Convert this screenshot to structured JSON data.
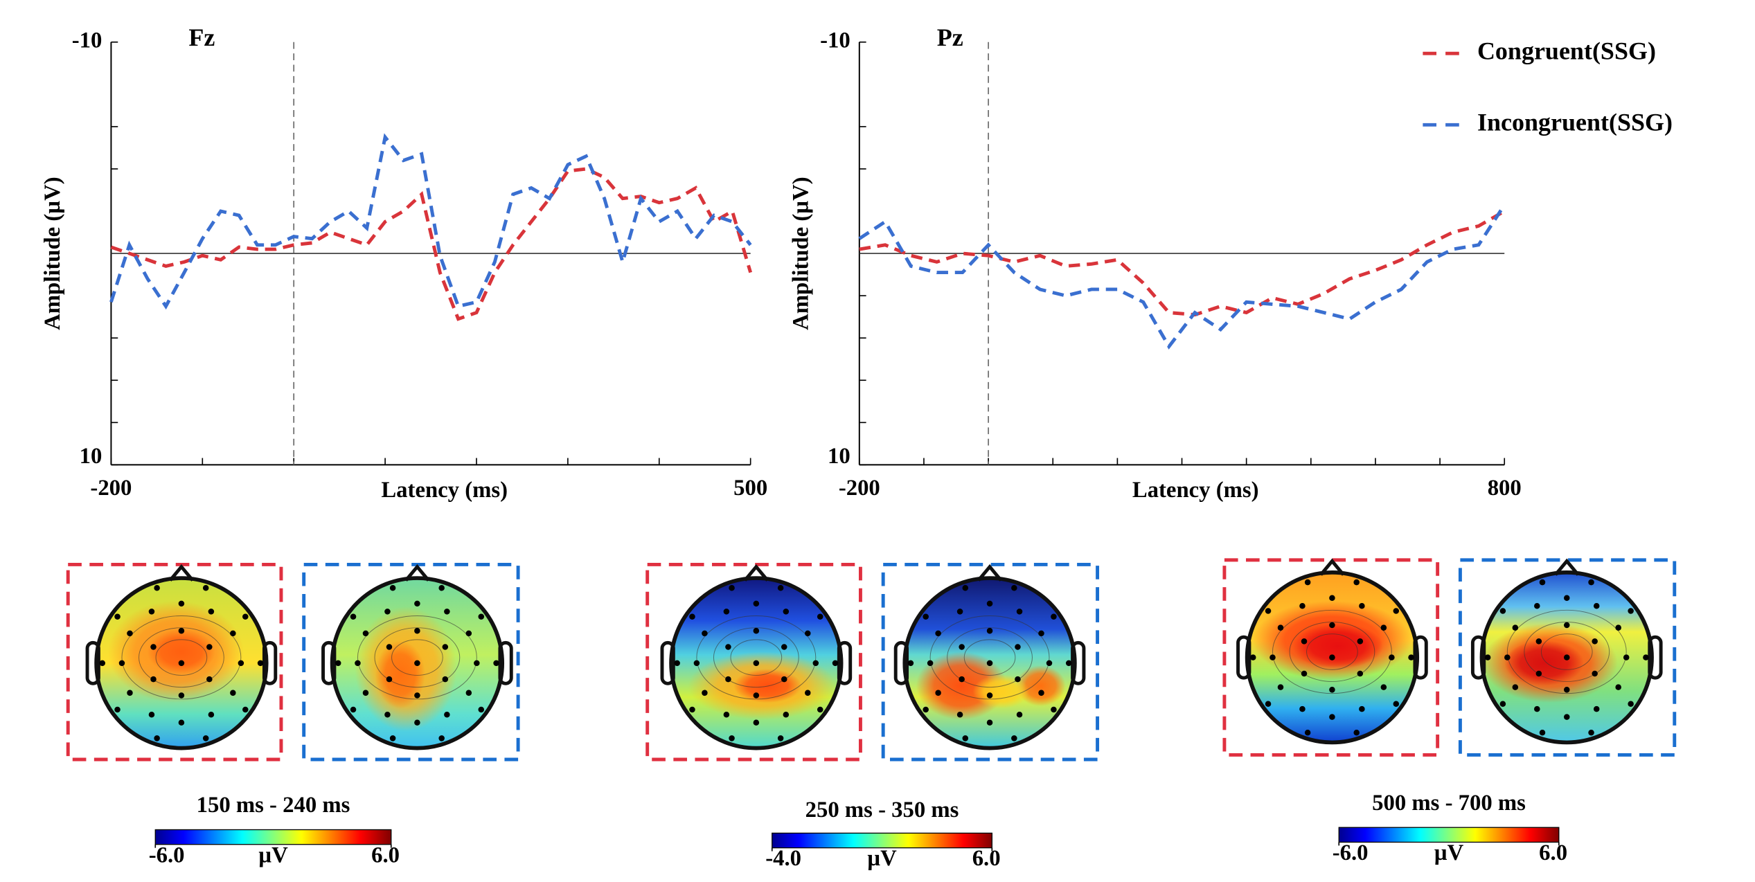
{
  "chart_data": [
    {
      "type": "line",
      "title": "Fz",
      "xlabel": "Latency (ms)",
      "ylabel": "Amplitude (µV)",
      "x": [
        -200,
        -180,
        -160,
        -140,
        -120,
        -100,
        -80,
        -60,
        -40,
        -20,
        0,
        20,
        40,
        60,
        80,
        100,
        120,
        140,
        160,
        180,
        200,
        220,
        240,
        260,
        280,
        300,
        320,
        340,
        360,
        380,
        400,
        420,
        440,
        460,
        480,
        500
      ],
      "series": [
        {
          "color": "#d9343a",
          "values": [
            -0.3,
            0,
            0.3,
            0.6,
            0.4,
            0.1,
            0.3,
            -0.3,
            -0.2,
            -0.2,
            -0.4,
            -0.5,
            -1.0,
            -0.7,
            -0.4,
            -1.5,
            -2.0,
            -2.8,
            0.9,
            3.1,
            2.8,
            0.9,
            -0.4,
            -1.5,
            -2.6,
            -3.9,
            -4.0,
            -3.6,
            -2.6,
            -2.7,
            -2.4,
            -2.6,
            -3.1,
            -1.5,
            -2.0,
            0.9
          ]
        },
        {
          "color": "#3a6fd0",
          "values": [
            2.3,
            -0.4,
            1.2,
            2.5,
            0.9,
            -0.7,
            -2.0,
            -1.8,
            -0.4,
            -0.4,
            -0.8,
            -0.7,
            -1.5,
            -2.0,
            -1.2,
            -5.5,
            -4.4,
            -4.7,
            0.1,
            2.5,
            2.3,
            0.4,
            -2.8,
            -3.1,
            -2.6,
            -4.2,
            -4.6,
            -2.6,
            0.4,
            -2.6,
            -1.5,
            -2.0,
            -0.7,
            -1.8,
            -1.5,
            -0.4
          ]
        }
      ],
      "xlim": [
        -200,
        500
      ],
      "xticks": [
        -200,
        500
      ],
      "xminorticks": [
        -100,
        0,
        100,
        200,
        300,
        400
      ],
      "ylim": [
        -10,
        10
      ],
      "y_reversed": true,
      "yticks": [
        -10,
        10
      ],
      "yminorticks": [
        -6,
        -4,
        4,
        6,
        8
      ],
      "hline": 0,
      "vline": 0,
      "grid": false
    },
    {
      "type": "line",
      "title": "Pz",
      "xlabel": "Latency (ms)",
      "ylabel": "Amplitude (µV)",
      "x": [
        -200,
        -160,
        -120,
        -80,
        -40,
        0,
        40,
        80,
        120,
        160,
        200,
        240,
        280,
        320,
        360,
        400,
        440,
        480,
        520,
        560,
        600,
        640,
        680,
        720,
        760,
        800
      ],
      "series": [
        {
          "name": "Congruent(SSG)",
          "color": "#d9343a",
          "values": [
            -0.2,
            -0.4,
            0.1,
            0.4,
            0,
            0.1,
            0.4,
            0.1,
            0.6,
            0.5,
            0.3,
            1.4,
            2.8,
            2.9,
            2.5,
            2.8,
            2.1,
            2.4,
            1.9,
            1.2,
            0.8,
            0.3,
            -0.4,
            -1.0,
            -1.3,
            -2.0
          ]
        },
        {
          "name": "Incongruent(SSG)",
          "color": "#3a6fd0",
          "values": [
            -0.7,
            -1.5,
            0.6,
            0.9,
            0.9,
            -0.4,
            0.9,
            1.7,
            2.0,
            1.7,
            1.7,
            2.3,
            4.4,
            2.8,
            3.6,
            2.3,
            2.4,
            2.5,
            2.8,
            3.1,
            2.3,
            1.7,
            0.4,
            -0.2,
            -0.4,
            -2.3
          ]
        }
      ],
      "xlim": [
        -200,
        800
      ],
      "xticks": [
        -200,
        800
      ],
      "xminorticks": [
        -100,
        0,
        100,
        200,
        300,
        400,
        500,
        600,
        700
      ],
      "ylim": [
        -10,
        10
      ],
      "y_reversed": true,
      "yticks": [
        -10,
        10
      ],
      "yminorticks": [
        -6,
        -4,
        2,
        4,
        6,
        8
      ],
      "hline": 0,
      "vline": 0,
      "grid": false,
      "legend": "top right"
    }
  ],
  "topomaps": [
    {
      "label": "150 ms - 240 ms",
      "colorbar": {
        "lim": [
          -6,
          6
        ],
        "ticks": [
          {
            "value": -6,
            "label": "-6.0"
          },
          {
            "value": 6,
            "label": "6.0"
          }
        ],
        "unit": "µV"
      }
    },
    {
      "label": "250 ms - 350 ms",
      "colorbar": {
        "lim": [
          -4,
          6
        ],
        "ticks": [
          {
            "value": -4,
            "label": "-4.0"
          },
          {
            "value": 6,
            "label": "6.0"
          }
        ],
        "unit": "µV"
      }
    },
    {
      "label": "500 ms - 700 ms",
      "colorbar": {
        "lim": [
          -6,
          6
        ],
        "ticks": [
          {
            "value": -6,
            "label": "-6.0"
          },
          {
            "value": 6,
            "label": "6.0"
          }
        ],
        "unit": "µV"
      }
    }
  ]
}
